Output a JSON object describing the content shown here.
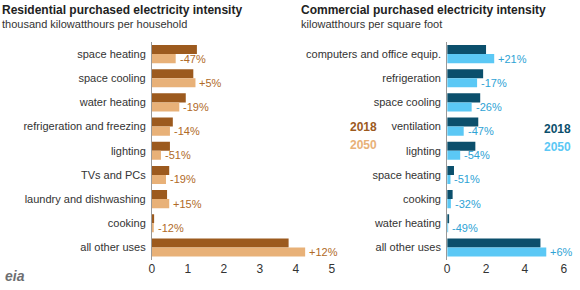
{
  "chart_data": [
    {
      "type": "bar",
      "orientation": "horizontal",
      "title": "Residential purchased electricity intensity",
      "subtitle": "thousand kilowatthours per household",
      "categories": [
        "space heating",
        "space cooling",
        "water heating",
        "refrigeration and freezing",
        "lighting",
        "TVs and PCs",
        "laundry and dishwashing",
        "cooking",
        "all other uses"
      ],
      "series": [
        {
          "name": "2018",
          "color": "#9c5a1e",
          "values": [
            1.25,
            1.15,
            0.94,
            0.58,
            0.5,
            0.48,
            0.42,
            0.06,
            3.8
          ]
        },
        {
          "name": "2050",
          "color": "#e8b178",
          "values": [
            0.66,
            1.21,
            0.76,
            0.5,
            0.25,
            0.39,
            0.48,
            0.05,
            4.26
          ]
        }
      ],
      "annotations": [
        "-47%",
        "+5%",
        "-19%",
        "-14%",
        "-51%",
        "-19%",
        "+15%",
        "-12%",
        "+12%"
      ],
      "xlim": [
        0,
        5
      ],
      "xticks": [
        0,
        1,
        2,
        3,
        4,
        5
      ],
      "grid": false
    },
    {
      "type": "bar",
      "orientation": "horizontal",
      "title": "Commercial purchased electricity intensity",
      "subtitle": "kilowatthours per square foot",
      "categories": [
        "computers and office equip.",
        "refrigeration",
        "space cooling",
        "ventilation",
        "lighting",
        "space heating",
        "cooking",
        "water heating",
        "all other uses"
      ],
      "series": [
        {
          "name": "2018",
          "color": "#0b4f6c",
          "values": [
            2.0,
            1.85,
            1.7,
            1.6,
            1.45,
            0.35,
            0.28,
            0.1,
            4.8
          ]
        },
        {
          "name": "2050",
          "color": "#5bc8f5",
          "values": [
            2.42,
            1.54,
            1.26,
            0.85,
            0.67,
            0.17,
            0.19,
            0.05,
            5.1
          ]
        }
      ],
      "annotations": [
        "+21%",
        "-17%",
        "-26%",
        "-47%",
        "-54%",
        "-51%",
        "-32%",
        "-49%",
        "+6%"
      ],
      "xlim": [
        0,
        6
      ],
      "xticks": [
        0,
        2,
        4,
        6
      ],
      "grid": false
    }
  ],
  "logo": "eia"
}
